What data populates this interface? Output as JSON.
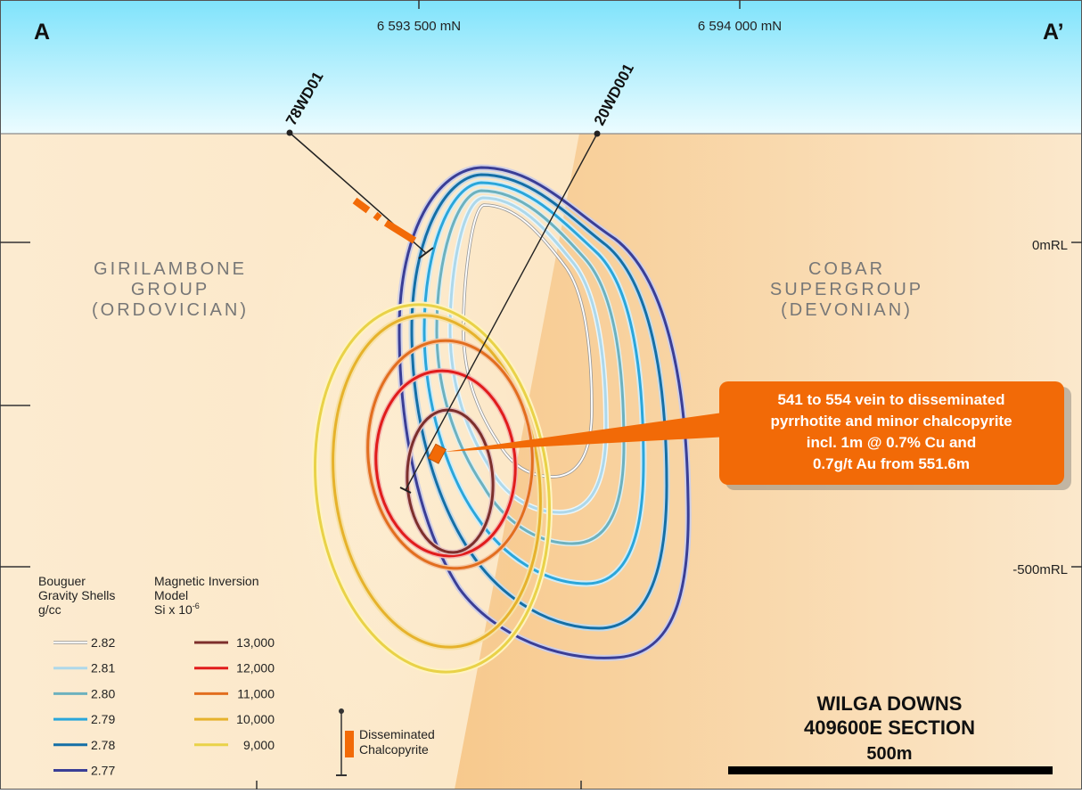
{
  "section": {
    "corner_left": "A",
    "corner_right": "A’",
    "northings": [
      "6 593 500 mN",
      "6 594 000 mN"
    ],
    "elevations": [
      "0mRL",
      "-500mRL"
    ]
  },
  "geology": {
    "west_unit": [
      "GIRILAMBONE",
      "GROUP",
      "(ORDOVICIAN)"
    ],
    "east_unit": [
      "COBAR",
      "SUPERGROUP",
      "(DEVONIAN)"
    ]
  },
  "drillholes": [
    {
      "id": "78WD01"
    },
    {
      "id": "20WD001"
    }
  ],
  "callout": {
    "lines": [
      "541 to 554 vein to disseminated",
      "pyrrhotite and minor chalcopyrite",
      "incl. 1m @ 0.7% Cu and",
      "0.7g/t Au from 551.6m"
    ],
    "color": "#f26a07"
  },
  "legend": {
    "gravity": {
      "title_lines": [
        "Bouguer",
        "Gravity Shells",
        "g/cc"
      ],
      "items": [
        {
          "label": "2.82",
          "color": "#ffffff"
        },
        {
          "label": "2.81",
          "color": "#aed8ea"
        },
        {
          "label": "2.80",
          "color": "#6db1be"
        },
        {
          "label": "2.79",
          "color": "#2aa6da"
        },
        {
          "label": "2.78",
          "color": "#146fa6"
        },
        {
          "label": "2.77",
          "color": "#3a3e96"
        }
      ]
    },
    "magnetic": {
      "title_lines": [
        "Magnetic Inversion",
        "Model"
      ],
      "units_base": "Si x 10",
      "units_exp": "-6",
      "items": [
        {
          "label": "13,000",
          "color": "#7d2f2c"
        },
        {
          "label": "12,000",
          "color": "#e11c1c"
        },
        {
          "label": "11,000",
          "color": "#e26e1f"
        },
        {
          "label": "10,000",
          "color": "#e6b22c"
        },
        {
          "label": "9,000",
          "color": "#e9d248"
        }
      ]
    },
    "mineral": {
      "lines": [
        "Disseminated",
        "Chalcopyrite"
      ],
      "color": "#f26a07"
    }
  },
  "title": {
    "line1": "WILGA DOWNS",
    "line2": "409600E SECTION",
    "scale_label": "500m"
  }
}
